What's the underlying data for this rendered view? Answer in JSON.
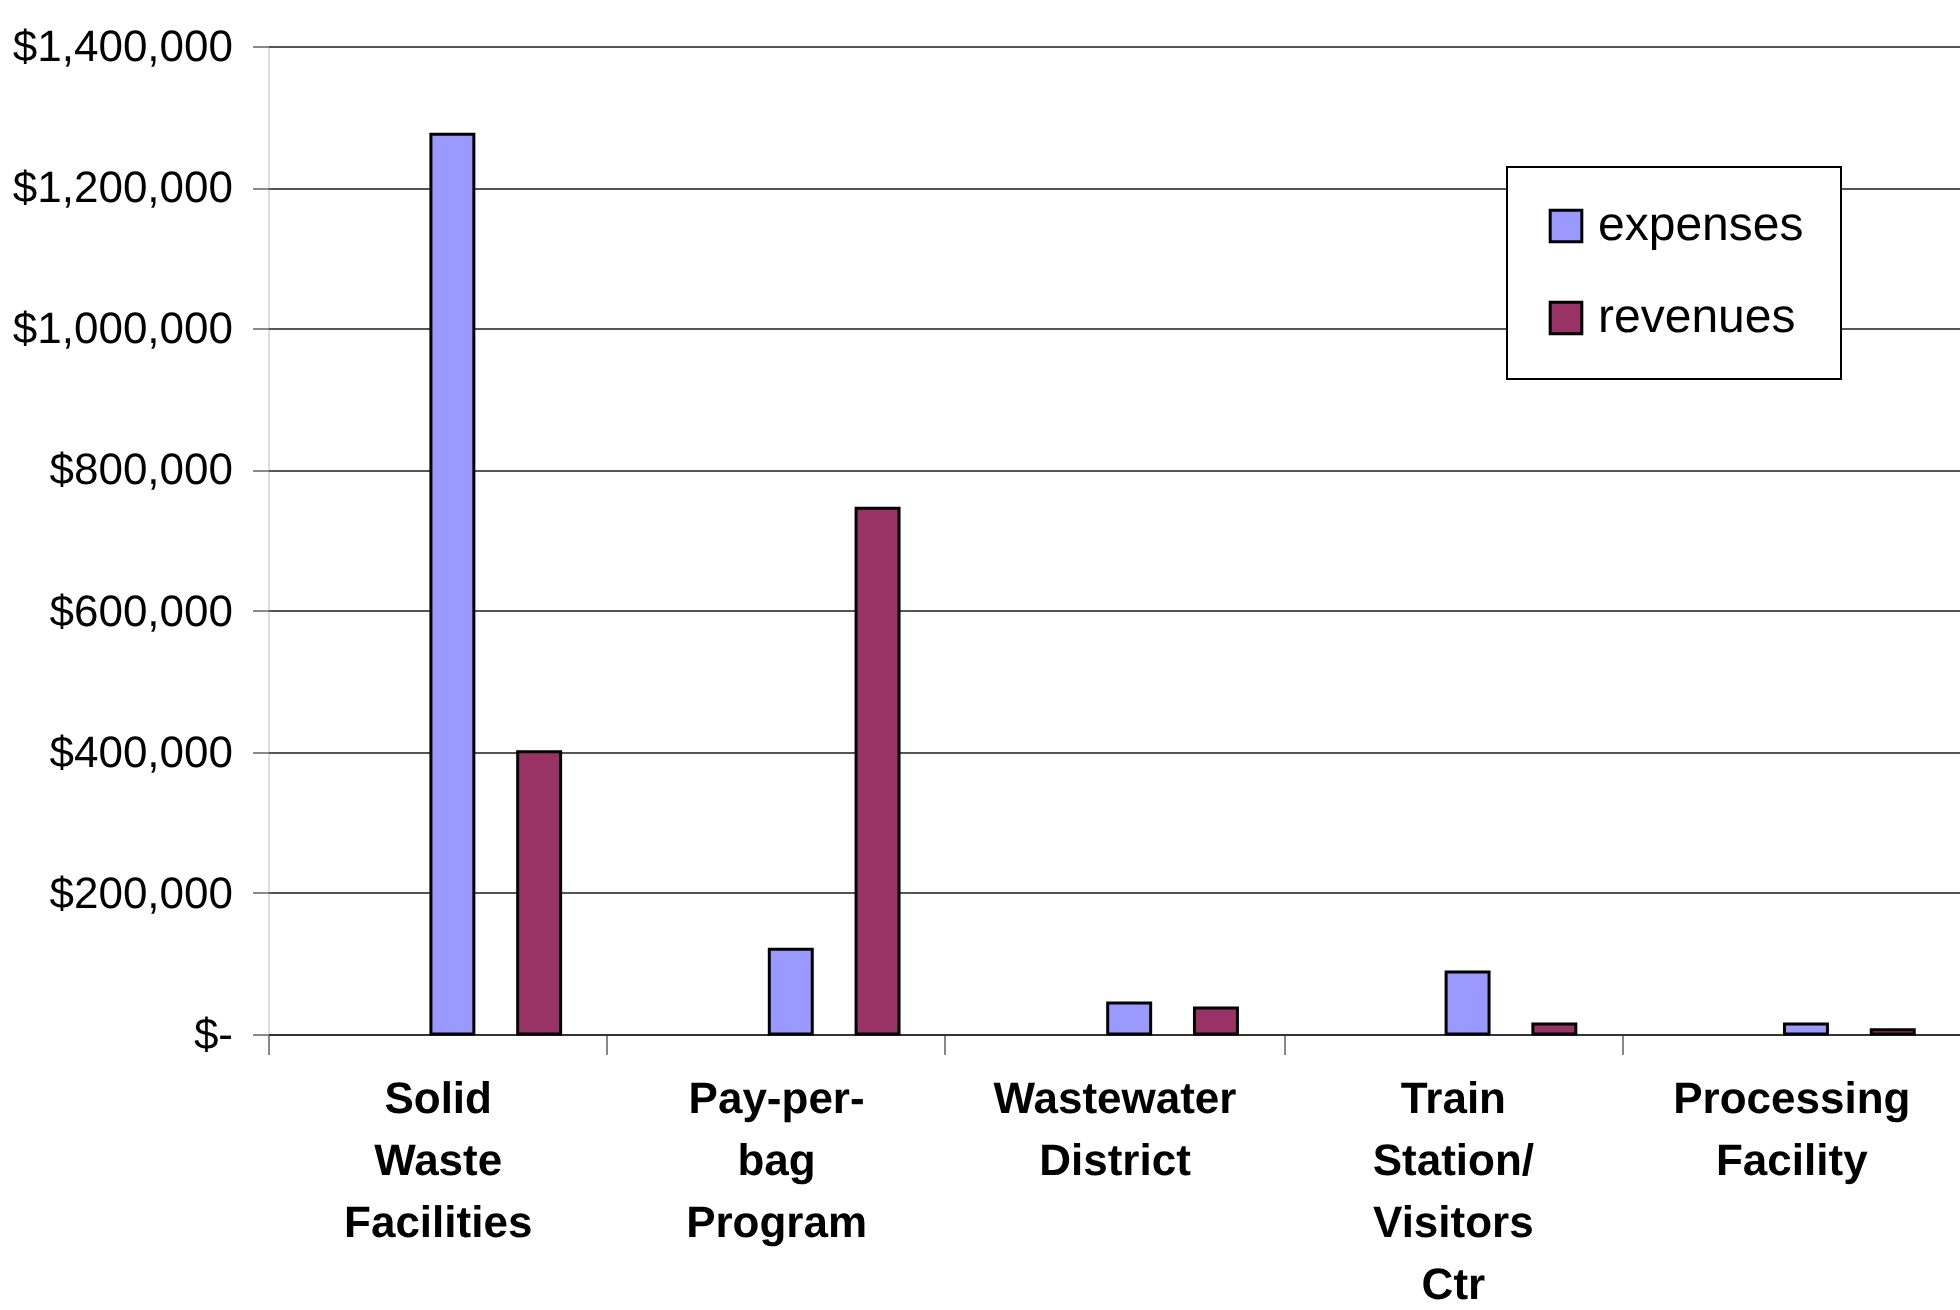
{
  "chart_data": {
    "type": "bar",
    "categories": [
      "Solid Waste Facilities",
      "Pay-per-bag Program",
      "Wastewater District",
      "Train Station/ Visitors Ctr",
      "Processing Facility"
    ],
    "series": [
      {
        "name": "expenses",
        "color": "#9999ff",
        "values": [
          1275000,
          120000,
          44000,
          88000,
          14000
        ]
      },
      {
        "name": "revenues",
        "color": "#993366",
        "values": [
          400000,
          745000,
          37000,
          14000,
          6000
        ]
      }
    ],
    "ylim": [
      0,
      1400000
    ],
    "yticks": [
      {
        "value": 0,
        "label": "$-"
      },
      {
        "value": 200000,
        "label": "$200,000"
      },
      {
        "value": 400000,
        "label": "$400,000"
      },
      {
        "value": 600000,
        "label": "$600,000"
      },
      {
        "value": 800000,
        "label": "$800,000"
      },
      {
        "value": 1000000,
        "label": "$1,000,000"
      },
      {
        "value": 1200000,
        "label": "$1,200,000"
      },
      {
        "value": 1400000,
        "label": "$1,400,000"
      }
    ],
    "grid": "y",
    "legend": "top right"
  }
}
